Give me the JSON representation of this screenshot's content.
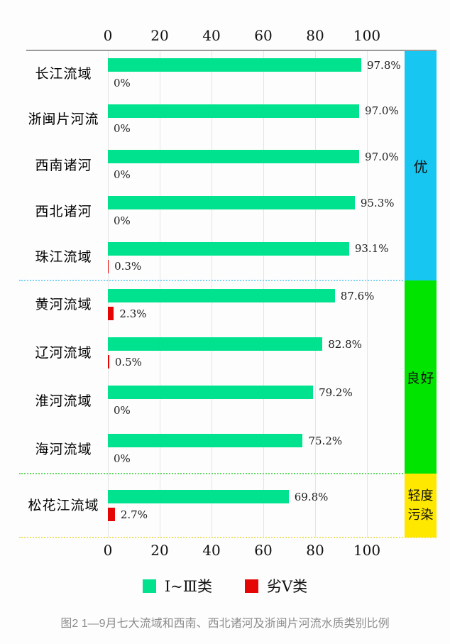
{
  "chart_data": {
    "type": "bar",
    "orientation": "horizontal",
    "xlim": [
      0,
      100
    ],
    "x_ticks": [
      "0",
      "20",
      "40",
      "60",
      "80",
      "100"
    ],
    "grid": true,
    "legend_position": "bottom",
    "categories": [
      "长江流域",
      "浙闽片河流",
      "西南诸河",
      "西北诸河",
      "珠江流域",
      "黄河流域",
      "辽河流域",
      "淮河流域",
      "海河流域",
      "松花江流域"
    ],
    "series": [
      {
        "name": "Ⅰ~Ⅲ类",
        "color": "#00E28E",
        "values": [
          97.8,
          97.0,
          97.0,
          95.3,
          93.1,
          87.6,
          82.8,
          79.2,
          75.2,
          69.8
        ]
      },
      {
        "name": "劣Ⅴ类",
        "color": "#E60505",
        "values": [
          0,
          0,
          0,
          0,
          0.3,
          2.3,
          0.5,
          0,
          0,
          2.7
        ]
      }
    ],
    "sections": [
      {
        "label": "优",
        "color": "#18C6F2",
        "categories": [
          "长江流域",
          "浙闽片河流",
          "西南诸河",
          "西北诸河",
          "珠江流域"
        ]
      },
      {
        "label": "良好",
        "color": "#00E400",
        "categories": [
          "黄河流域",
          "辽河流域",
          "淮河流域",
          "海河流域"
        ]
      },
      {
        "label": "轻度污染",
        "color": "#FFE800",
        "categories": [
          "松花江流域"
        ]
      }
    ],
    "caption": "图2  1—9月七大流域和西南、西北诸河及浙闽片河流水质类别比例"
  },
  "ticks": {
    "t0": "0",
    "t1": "20",
    "t2": "40",
    "t3": "60",
    "t4": "80",
    "t5": "100"
  },
  "rows": [
    {
      "label": "长江流域",
      "main_pct": 97.8,
      "main_label": "97.8%",
      "sub_pct": 0,
      "sub_label": "0%"
    },
    {
      "label": "浙闽片河流",
      "main_pct": 97.0,
      "main_label": "97.0%",
      "sub_pct": 0,
      "sub_label": "0%"
    },
    {
      "label": "西南诸河",
      "main_pct": 97.0,
      "main_label": "97.0%",
      "sub_pct": 0,
      "sub_label": "0%"
    },
    {
      "label": "西北诸河",
      "main_pct": 95.3,
      "main_label": "95.3%",
      "sub_pct": 0,
      "sub_label": "0%"
    },
    {
      "label": "珠江流域",
      "main_pct": 93.1,
      "main_label": "93.1%",
      "sub_pct": 0.3,
      "sub_label": "0.3%"
    },
    {
      "label": "黄河流域",
      "main_pct": 87.6,
      "main_label": "87.6%",
      "sub_pct": 2.3,
      "sub_label": "2.3%"
    },
    {
      "label": "辽河流域",
      "main_pct": 82.8,
      "main_label": "82.8%",
      "sub_pct": 0.5,
      "sub_label": "0.5%"
    },
    {
      "label": "淮河流域",
      "main_pct": 79.2,
      "main_label": "79.2%",
      "sub_pct": 0,
      "sub_label": "0%"
    },
    {
      "label": "海河流域",
      "main_pct": 75.2,
      "main_label": "75.2%",
      "sub_pct": 0,
      "sub_label": "0%"
    },
    {
      "label": "松花江流域",
      "main_pct": 69.8,
      "main_label": "69.8%",
      "sub_pct": 2.7,
      "sub_label": "2.7%"
    }
  ],
  "strip": {
    "excellent": "优",
    "good": "良好",
    "light_pollution": "轻度污染"
  },
  "legend": {
    "items": [
      {
        "label": "Ⅰ~Ⅲ类",
        "color": "#00E28E"
      },
      {
        "label": "劣Ⅴ类",
        "color": "#E60505"
      }
    ]
  },
  "caption": "图2  1—9月七大流域和西南、西北诸河及浙闽片河流水质类别比例"
}
